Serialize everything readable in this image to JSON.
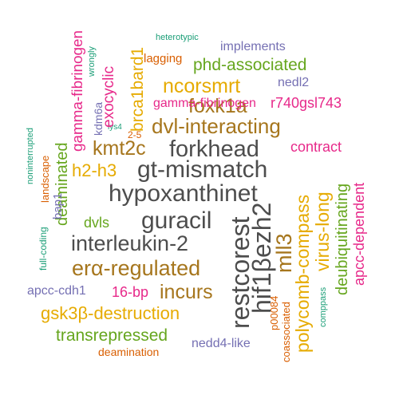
{
  "colors": {
    "charcoal": "#4d4d4d",
    "brown": "#a6761d",
    "gold": "#e6ab02",
    "green": "#66a61e",
    "magenta": "#e7298a",
    "purple": "#7570b3",
    "orange": "#d95f02",
    "teal": "#1b9e77"
  },
  "words": [
    {
      "text": "hypoxanthinet",
      "color": "charcoal"
    },
    {
      "text": "gt-mismatch",
      "color": "charcoal"
    },
    {
      "text": "guracil",
      "color": "charcoal"
    },
    {
      "text": "forkhead",
      "color": "charcoal"
    },
    {
      "text": "interleukin-2",
      "color": "charcoal"
    },
    {
      "text": "restcorest",
      "color": "charcoal"
    },
    {
      "text": "hif1βezh2",
      "color": "charcoal"
    },
    {
      "text": "dvl-interacting",
      "color": "brown"
    },
    {
      "text": "erα-regulated",
      "color": "brown"
    },
    {
      "text": "foxk1a",
      "color": "brown"
    },
    {
      "text": "kmt2c",
      "color": "brown"
    },
    {
      "text": "incurs",
      "color": "brown"
    },
    {
      "text": "mll3",
      "color": "brown"
    },
    {
      "text": "ncorsmrt",
      "color": "gold"
    },
    {
      "text": "gsk3β-destruction",
      "color": "gold"
    },
    {
      "text": "h2-h3",
      "color": "gold"
    },
    {
      "text": "polycomb-compass",
      "color": "gold"
    },
    {
      "text": "virus-long",
      "color": "gold"
    },
    {
      "text": "brca1bard1",
      "color": "gold"
    },
    {
      "text": "phd-associated",
      "color": "green"
    },
    {
      "text": "transrepressed",
      "color": "green"
    },
    {
      "text": "deaminated",
      "color": "green"
    },
    {
      "text": "deubiquitinating",
      "color": "green"
    },
    {
      "text": "rkrrpr",
      "color": "green"
    },
    {
      "text": "dvls",
      "color": "green"
    },
    {
      "text": "gamma-fibrinogen",
      "color": "magenta"
    },
    {
      "text": "r740gsl743",
      "color": "magenta"
    },
    {
      "text": "contract",
      "color": "magenta"
    },
    {
      "text": "16-bp",
      "color": "magenta"
    },
    {
      "text": "apcc-dependent",
      "color": "magenta"
    },
    {
      "text": "exocyclic",
      "color": "magenta"
    },
    {
      "text": "implements",
      "color": "purple"
    },
    {
      "text": "nedl2",
      "color": "purple"
    },
    {
      "text": "apcc-cdh1",
      "color": "purple"
    },
    {
      "text": "nedd4-like",
      "color": "purple"
    },
    {
      "text": "bap1",
      "color": "purple"
    },
    {
      "text": "kdm6a",
      "color": "purple"
    },
    {
      "text": "lagging",
      "color": "orange"
    },
    {
      "text": "deamination",
      "color": "orange"
    },
    {
      "text": "landscape",
      "color": "orange"
    },
    {
      "text": "coassociated",
      "color": "orange"
    },
    {
      "text": "p00084",
      "color": "orange"
    },
    {
      "text": "2-5",
      "color": "orange"
    },
    {
      "text": "heterotypic",
      "color": "teal"
    },
    {
      "text": "wrongly",
      "color": "teal"
    },
    {
      "text": "lys4",
      "color": "teal"
    },
    {
      "text": "noninterrupted",
      "color": "teal"
    },
    {
      "text": "full-coding",
      "color": "teal"
    },
    {
      "text": "comppass",
      "color": "teal"
    }
  ]
}
